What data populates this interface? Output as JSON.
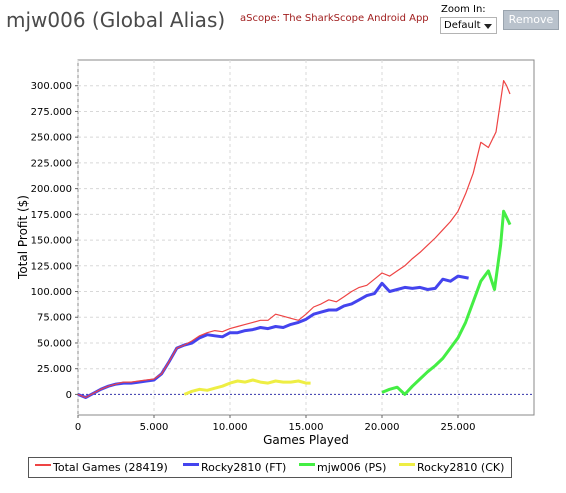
{
  "header": {
    "title": "mjw006 (Global Alias)",
    "app_link": "aScope: The SharkScope Android App",
    "zoom_label": "Zoom In:",
    "zoom_value": "Default",
    "remove_label": "Remove"
  },
  "chart_data": {
    "type": "line",
    "title": "",
    "xlabel": "Games Played",
    "ylabel": "Total Profit ($)",
    "xlim": [
      0,
      30000
    ],
    "ylim": [
      -20000,
      325000
    ],
    "x_ticks": [
      0,
      5000,
      10000,
      15000,
      20000,
      25000
    ],
    "x_tick_labels": [
      "0",
      "5.000",
      "10.000",
      "15.000",
      "20.000",
      "25.000"
    ],
    "y_ticks": [
      0,
      25000,
      50000,
      75000,
      100000,
      125000,
      150000,
      175000,
      200000,
      225000,
      250000,
      275000,
      300000
    ],
    "y_tick_labels": [
      "0",
      "25.000",
      "50.000",
      "75.000",
      "100.000",
      "125.000",
      "150.000",
      "175.000",
      "200.000",
      "225.000",
      "250.000",
      "275.000",
      "300.000"
    ],
    "grid": true,
    "legend_position": "bottom",
    "series": [
      {
        "name": "Total Games (28419)",
        "color": "#ee4444",
        "x": [
          0,
          500,
          1000,
          1500,
          2000,
          2500,
          3000,
          3500,
          4000,
          4500,
          5000,
          5500,
          6000,
          6500,
          7000,
          7500,
          8000,
          8500,
          9000,
          9500,
          10000,
          10500,
          11000,
          11500,
          12000,
          12500,
          13000,
          13500,
          14000,
          14500,
          15000,
          15500,
          16000,
          16500,
          17000,
          17500,
          18000,
          18500,
          19000,
          19500,
          20000,
          20500,
          21000,
          21500,
          22000,
          22500,
          23000,
          23500,
          24000,
          24500,
          25000,
          25500,
          26000,
          26500,
          27000,
          27500,
          28000,
          28200,
          28419
        ],
        "values": [
          0,
          -3000,
          1000,
          5000,
          8000,
          10000,
          12000,
          12000,
          13000,
          14000,
          15000,
          20000,
          32000,
          45000,
          48000,
          52000,
          57000,
          60000,
          62000,
          61000,
          64000,
          66000,
          68000,
          70000,
          72000,
          72000,
          78000,
          76000,
          74000,
          72000,
          78000,
          85000,
          88000,
          92000,
          90000,
          95000,
          100000,
          104000,
          106000,
          112000,
          118000,
          115000,
          120000,
          125000,
          132000,
          138000,
          145000,
          152000,
          160000,
          168000,
          178000,
          195000,
          215000,
          245000,
          240000,
          255000,
          305000,
          300000,
          292000
        ]
      },
      {
        "name": "Rocky2810 (FT)",
        "color": "#4444ee",
        "x": [
          0,
          500,
          1000,
          1500,
          2000,
          2500,
          3000,
          3500,
          4000,
          4500,
          5000,
          5500,
          6000,
          6500,
          7000,
          7500,
          8000,
          8500,
          9000,
          9500,
          10000,
          10500,
          11000,
          11500,
          12000,
          12500,
          13000,
          13500,
          14000,
          14500,
          15000,
          15500,
          16000,
          16500,
          17000,
          17500,
          18000,
          18500,
          19000,
          19500,
          20000,
          20500,
          21000,
          21500,
          22000,
          22500,
          23000,
          23500,
          24000,
          24500,
          25000,
          25700
        ],
        "values": [
          0,
          -3000,
          1000,
          5000,
          8000,
          10000,
          11000,
          11000,
          12000,
          13000,
          14000,
          20000,
          32000,
          45000,
          48000,
          50000,
          55000,
          58000,
          57000,
          56000,
          60000,
          60000,
          62000,
          63000,
          65000,
          64000,
          66000,
          65000,
          68000,
          70000,
          73000,
          78000,
          80000,
          82000,
          82000,
          86000,
          88000,
          92000,
          96000,
          98000,
          108000,
          100000,
          102000,
          104000,
          103000,
          104000,
          102000,
          103000,
          112000,
          110000,
          115000,
          113000
        ]
      },
      {
        "name": "mjw006 (PS)",
        "color": "#44ee44",
        "x": [
          20000,
          20500,
          21000,
          21500,
          22000,
          22500,
          23000,
          23500,
          24000,
          24500,
          25000,
          25500,
          26000,
          26500,
          27000,
          27400,
          27800,
          28000,
          28200,
          28419
        ],
        "values": [
          2000,
          5000,
          7000,
          0,
          8000,
          15000,
          22000,
          28000,
          35000,
          45000,
          55000,
          70000,
          90000,
          110000,
          120000,
          102000,
          145000,
          178000,
          172000,
          165000
        ]
      },
      {
        "name": "Rocky2810 (CK)",
        "color": "#eeee44",
        "x": [
          7000,
          7500,
          8000,
          8500,
          9000,
          9500,
          10000,
          10500,
          11000,
          11500,
          12000,
          12500,
          13000,
          13500,
          14000,
          14500,
          15000,
          15300
        ],
        "values": [
          0,
          3000,
          5000,
          4000,
          6000,
          8000,
          11000,
          13000,
          12000,
          14000,
          12000,
          11000,
          13000,
          12000,
          12000,
          13000,
          11000,
          11000
        ]
      }
    ]
  }
}
